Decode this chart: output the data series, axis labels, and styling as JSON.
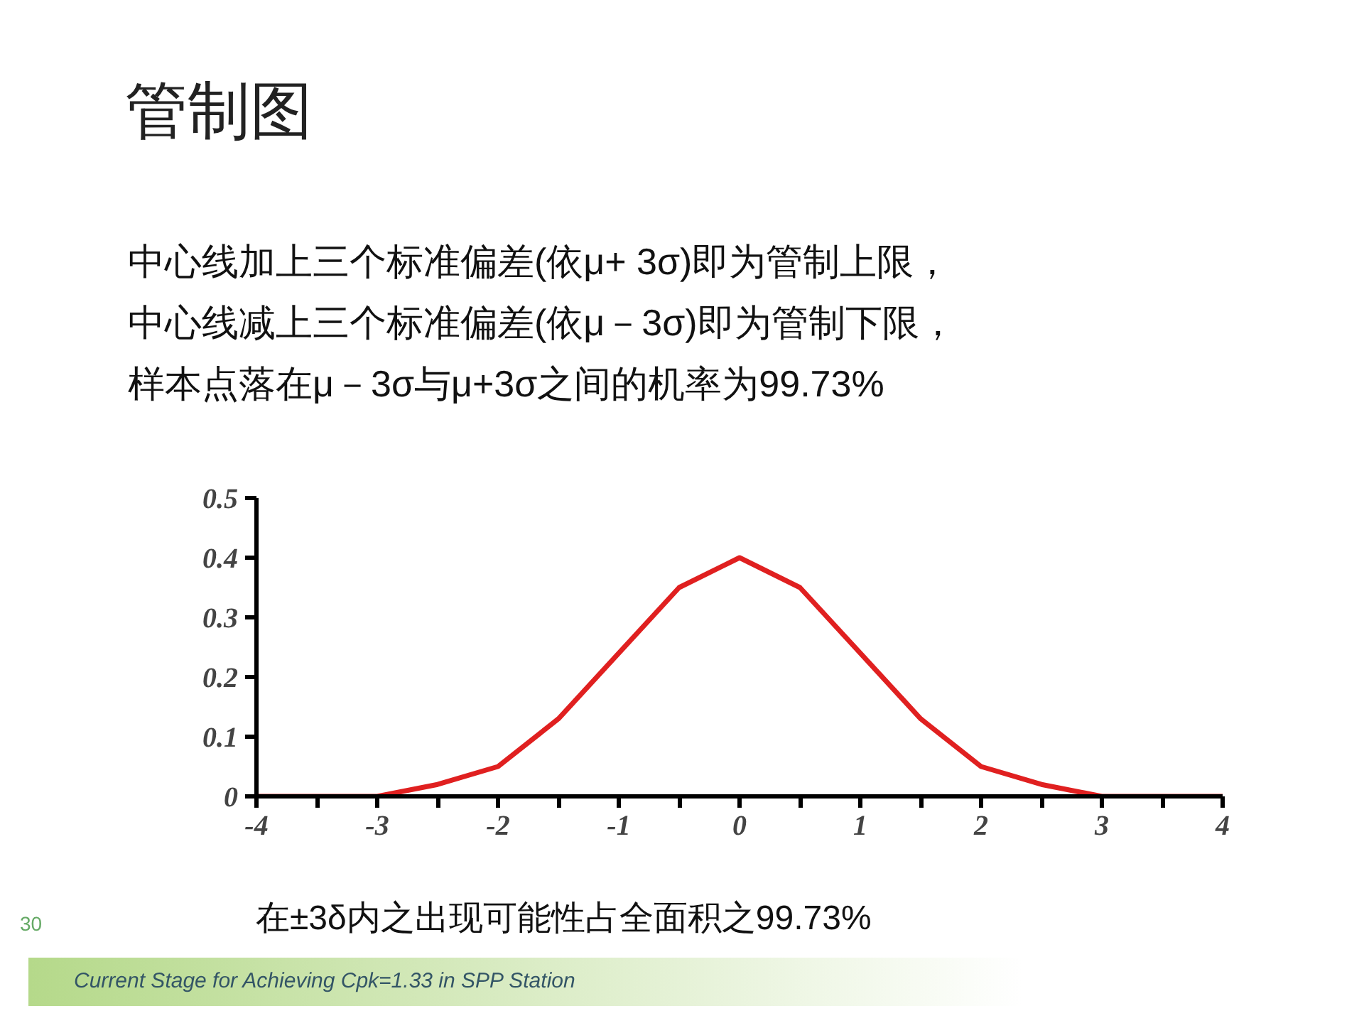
{
  "chart_data": {
    "type": "line",
    "title": "管制图",
    "annotations": [
      "中心线加上三个标准偏差(依μ+ 3σ)即为管制上限，",
      "中心线减上三个标准偏差(依μ－3σ)即为管制下限，",
      "样本点落在μ－3σ与μ+3σ之间的机率为99.73%",
      "在±3δ内之出现可能性占全面积之99.73%",
      "30",
      "Current Stage for Achieving Cpk=1.33 in SPP Station"
    ],
    "x": [
      -4,
      -3.5,
      -3,
      -2.5,
      -2,
      -1.5,
      -1,
      -0.5,
      0,
      0.5,
      1,
      1.5,
      2,
      2.5,
      3,
      3.5,
      4
    ],
    "series": [
      {
        "color": "#e02020",
        "values": [
          0.0,
          0.0,
          0.0,
          0.02,
          0.05,
          0.13,
          0.24,
          0.35,
          0.4,
          0.35,
          0.24,
          0.13,
          0.05,
          0.02,
          0.0,
          0.0,
          0.0
        ]
      }
    ],
    "xlim": [
      -4,
      4
    ],
    "xticks": [
      -4,
      {
        "value": -3.5,
        "label": null
      },
      -3,
      {
        "value": -2.5,
        "label": null
      },
      -2,
      {
        "value": -1.5,
        "label": null
      },
      -1,
      {
        "value": -0.5,
        "label": null
      },
      0,
      {
        "value": 0.5,
        "label": null
      },
      1,
      {
        "value": 1.5,
        "label": null
      },
      2,
      {
        "value": 2.5,
        "label": null
      },
      3,
      {
        "value": 3.5,
        "label": null
      },
      4
    ],
    "ylim": [
      0,
      0.5
    ],
    "yticks": [
      0,
      0.1,
      0.2,
      0.3,
      0.4,
      0.5
    ],
    "grid": false,
    "marker": "none",
    "line_style": "solid"
  }
}
